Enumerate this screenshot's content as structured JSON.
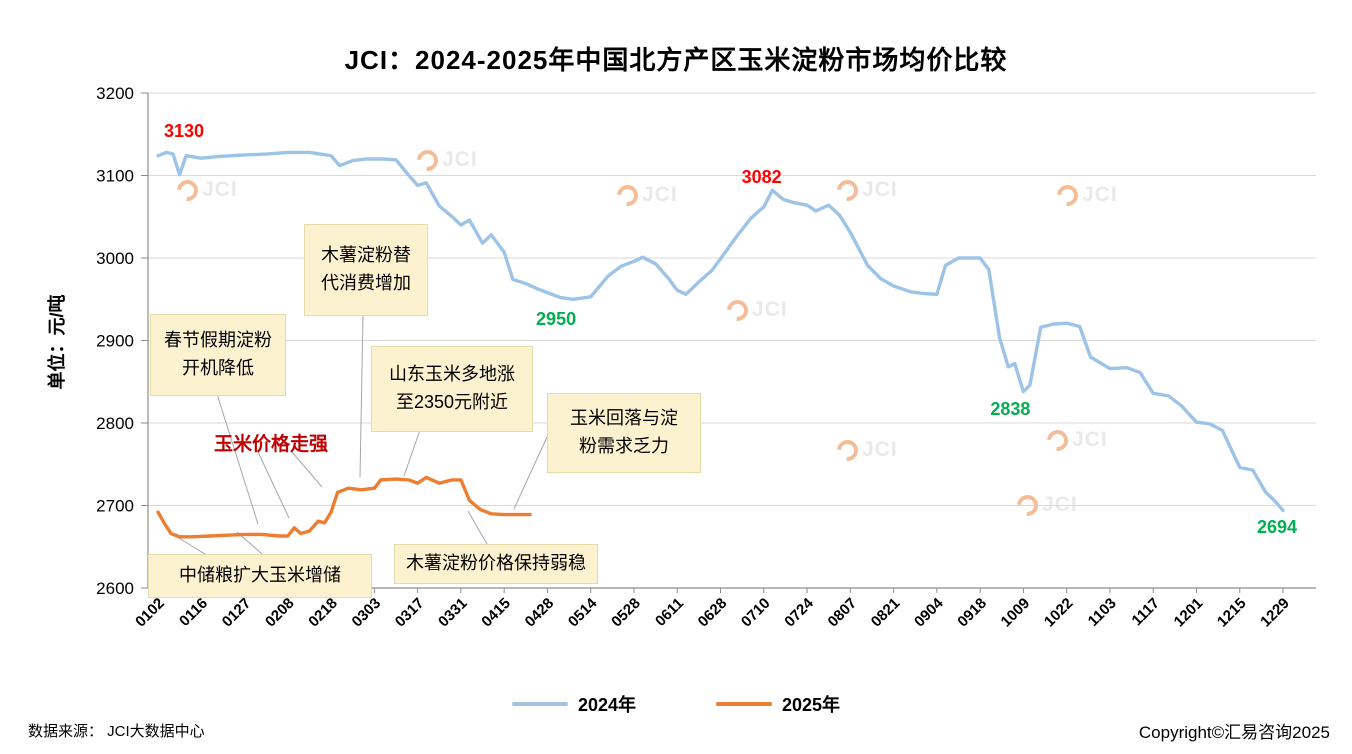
{
  "title": "JCI：2024-2025年中国北方产区玉米淀粉市场均价比较",
  "y_axis_title": "单位：元/吨",
  "watermark_text": "JCI",
  "footer": {
    "source": "数据来源： JCI大数据中心",
    "copyright": "Copyright©汇易咨询2025"
  },
  "strong_label": {
    "text": "玉米价格走强",
    "color": "#C00000"
  },
  "callouts": [
    {
      "id": "spring-festival",
      "text": "春节假期淀粉\n开机降低"
    },
    {
      "id": "cassava-substitution",
      "text": "木薯淀粉替\n代消费增加"
    },
    {
      "id": "shandong-corn",
      "text": "山东玉米多地涨\n至2350元附近"
    },
    {
      "id": "corn-fallback",
      "text": "玉米回落与淀\n粉需求乏力"
    },
    {
      "id": "grain-reserve",
      "text": "中储粮扩大玉米增储"
    },
    {
      "id": "cassava-weak",
      "text": "木薯淀粉价格保持弱稳"
    }
  ],
  "chart_data": {
    "type": "line",
    "title": "JCI：2024-2025年中国北方产区玉米淀粉市场均价比较",
    "xlabel": "",
    "ylabel": "单位：元/吨",
    "ylim": [
      2600,
      3200
    ],
    "y_ticks": [
      2600,
      2700,
      2800,
      2900,
      3000,
      3100,
      3200
    ],
    "x_ticks": [
      "0102",
      "0116",
      "0127",
      "0208",
      "0218",
      "0303",
      "0317",
      "0331",
      "0415",
      "0428",
      "0514",
      "0528",
      "0611",
      "0628",
      "0710",
      "0724",
      "0807",
      "0821",
      "0904",
      "0918",
      "1009",
      "1022",
      "1103",
      "1117",
      "1201",
      "1215",
      "1229"
    ],
    "grid": true,
    "legend_position": "bottom",
    "series": [
      {
        "name": "2024年",
        "color": "#9DC3E6",
        "points": [
          [
            0,
            3124
          ],
          [
            0.2,
            3128
          ],
          [
            0.35,
            3126
          ],
          [
            0.5,
            3101
          ],
          [
            0.65,
            3124
          ],
          [
            1,
            3121
          ],
          [
            1.4,
            3123
          ],
          [
            2,
            3125
          ],
          [
            2.5,
            3126
          ],
          [
            3,
            3128
          ],
          [
            3.5,
            3128
          ],
          [
            4,
            3124
          ],
          [
            4.2,
            3112
          ],
          [
            4.5,
            3118
          ],
          [
            4.8,
            3120
          ],
          [
            5.2,
            3120
          ],
          [
            5.5,
            3119
          ],
          [
            5.75,
            3103
          ],
          [
            6,
            3088
          ],
          [
            6.2,
            3091
          ],
          [
            6.5,
            3063
          ],
          [
            6.8,
            3050
          ],
          [
            7,
            3040
          ],
          [
            7.2,
            3046
          ],
          [
            7.5,
            3018
          ],
          [
            7.7,
            3028
          ],
          [
            8,
            3007
          ],
          [
            8.2,
            2974
          ],
          [
            8.5,
            2969
          ],
          [
            8.8,
            2962
          ],
          [
            9,
            2958
          ],
          [
            9.3,
            2952
          ],
          [
            9.6,
            2950
          ],
          [
            10,
            2953
          ],
          [
            10.4,
            2978
          ],
          [
            10.7,
            2990
          ],
          [
            11,
            2996
          ],
          [
            11.2,
            3001
          ],
          [
            11.5,
            2993
          ],
          [
            11.8,
            2975
          ],
          [
            12,
            2961
          ],
          [
            12.2,
            2956
          ],
          [
            12.5,
            2971
          ],
          [
            12.8,
            2985
          ],
          [
            13,
            2999
          ],
          [
            13.4,
            3028
          ],
          [
            13.7,
            3048
          ],
          [
            14,
            3062
          ],
          [
            14.2,
            3082
          ],
          [
            14.45,
            3071
          ],
          [
            14.7,
            3067
          ],
          [
            15,
            3064
          ],
          [
            15.2,
            3057
          ],
          [
            15.5,
            3064
          ],
          [
            15.75,
            3052
          ],
          [
            16,
            3031
          ],
          [
            16.4,
            2991
          ],
          [
            16.7,
            2975
          ],
          [
            17,
            2966
          ],
          [
            17.4,
            2959
          ],
          [
            17.7,
            2957
          ],
          [
            18,
            2956
          ],
          [
            18.2,
            2991
          ],
          [
            18.5,
            3000
          ],
          [
            19,
            3000
          ],
          [
            19.2,
            2986
          ],
          [
            19.45,
            2903
          ],
          [
            19.65,
            2868
          ],
          [
            19.8,
            2872
          ],
          [
            20,
            2838
          ],
          [
            20.15,
            2846
          ],
          [
            20.4,
            2916
          ],
          [
            20.7,
            2920
          ],
          [
            21,
            2921
          ],
          [
            21.3,
            2917
          ],
          [
            21.55,
            2880
          ],
          [
            22,
            2866
          ],
          [
            22.4,
            2867
          ],
          [
            22.7,
            2861
          ],
          [
            23,
            2836
          ],
          [
            23.35,
            2833
          ],
          [
            23.65,
            2821
          ],
          [
            24,
            2801
          ],
          [
            24.3,
            2799
          ],
          [
            24.6,
            2791
          ],
          [
            25,
            2746
          ],
          [
            25.3,
            2743
          ],
          [
            25.6,
            2716
          ],
          [
            25.8,
            2706
          ],
          [
            26,
            2694
          ]
        ]
      },
      {
        "name": "2025年",
        "color": "#ED7D31",
        "points": [
          [
            0,
            2692
          ],
          [
            0.15,
            2678
          ],
          [
            0.3,
            2666
          ],
          [
            0.5,
            2662
          ],
          [
            0.8,
            2662
          ],
          [
            1.2,
            2663
          ],
          [
            1.6,
            2664
          ],
          [
            2,
            2665
          ],
          [
            2.4,
            2665
          ],
          [
            2.8,
            2663
          ],
          [
            3,
            2663
          ],
          [
            3.15,
            2673
          ],
          [
            3.3,
            2666
          ],
          [
            3.5,
            2669
          ],
          [
            3.7,
            2681
          ],
          [
            3.85,
            2679
          ],
          [
            4,
            2692
          ],
          [
            4.15,
            2716
          ],
          [
            4.4,
            2721
          ],
          [
            4.7,
            2719
          ],
          [
            5,
            2721
          ],
          [
            5.15,
            2731
          ],
          [
            5.5,
            2732
          ],
          [
            5.8,
            2731
          ],
          [
            6,
            2727
          ],
          [
            6.2,
            2734
          ],
          [
            6.5,
            2727
          ],
          [
            6.8,
            2731
          ],
          [
            7,
            2731
          ],
          [
            7.2,
            2706
          ],
          [
            7.45,
            2695
          ],
          [
            7.7,
            2690
          ],
          [
            8,
            2689
          ],
          [
            8.3,
            2689
          ],
          [
            8.6,
            2689
          ]
        ]
      }
    ],
    "annotations": [
      {
        "text": "3130",
        "color": "#FF0000",
        "t": 0.6,
        "value": 3154
      },
      {
        "text": "3082",
        "color": "#FF0000",
        "t": 13.95,
        "value": 3098
      },
      {
        "text": "2950",
        "color": "#00B050",
        "t": 9.2,
        "value": 2926
      },
      {
        "text": "2838",
        "color": "#00B050",
        "t": 19.7,
        "value": 2817
      },
      {
        "text": "2694",
        "color": "#00B050",
        "t": 25.86,
        "value": 2674
      }
    ]
  }
}
